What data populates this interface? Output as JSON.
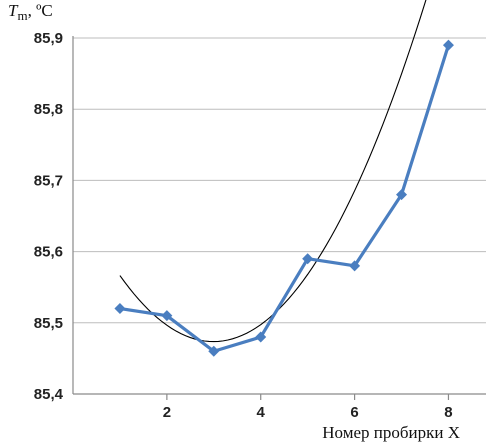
{
  "chart_data": {
    "type": "line",
    "title": "",
    "ylabel": {
      "main": "T",
      "sub": "m",
      "unit": ", ºC"
    },
    "xlabel": "Номер пробирки X",
    "xlim": [
      0,
      8.8
    ],
    "ylim": [
      85.4,
      85.9
    ],
    "x_ticks": [
      2,
      4,
      6,
      8
    ],
    "y_ticks": [
      85.4,
      85.5,
      85.6,
      85.7,
      85.8,
      85.9
    ],
    "y_tick_labels": [
      "85,4",
      "85,5",
      "85,6",
      "85,7",
      "85,8",
      "85,9"
    ],
    "x_tick_labels": [
      "2",
      "4",
      "6",
      "8"
    ],
    "grid": "horizontal",
    "series": [
      {
        "color": "#4a7ec0",
        "marker": "diamond",
        "x": [
          1,
          2,
          3,
          4,
          5,
          6,
          7,
          8
        ],
        "y": [
          85.52,
          85.51,
          85.46,
          85.48,
          85.59,
          85.58,
          85.68,
          85.89
        ]
      }
    ],
    "trendline": {
      "type": "polynomial",
      "color": "#000000",
      "x_range": [
        1,
        8
      ],
      "coefficients": [
        85.683,
        -0.14,
        0.0234
      ]
    }
  }
}
